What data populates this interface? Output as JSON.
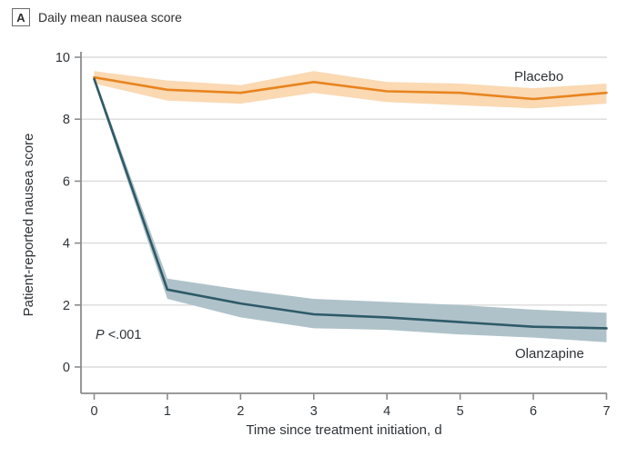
{
  "panel": {
    "label": "A",
    "title": "Daily mean nausea score"
  },
  "annotations": {
    "p_label": "P",
    "p_value": " <.001"
  },
  "colors": {
    "placebo_line": "#E8841F",
    "placebo_band": "#FAD9B3",
    "olanzapine_line": "#2E5A68",
    "olanzapine_band": "#AFC2CA",
    "grid": "#DBDBDB",
    "axis": "#8C8C8C",
    "text": "#2E3338"
  },
  "chart_data": {
    "type": "line",
    "x": [
      0,
      1,
      2,
      3,
      4,
      5,
      6,
      7
    ],
    "xlabel": "Time since treatment initiation, d",
    "ylabel": "Patient-reported nausea score",
    "xlim": [
      0,
      7
    ],
    "ylim": [
      0,
      10
    ],
    "xticks": [
      0,
      1,
      2,
      3,
      4,
      5,
      6,
      7
    ],
    "yticks": [
      0,
      2,
      4,
      6,
      8,
      10
    ],
    "grid": true,
    "legend_position": "inline-labels",
    "series": [
      {
        "name": "Placebo",
        "values": [
          9.35,
          8.95,
          8.85,
          9.2,
          8.9,
          8.85,
          8.65,
          8.85
        ],
        "band_upper": [
          9.55,
          9.25,
          9.1,
          9.55,
          9.2,
          9.15,
          9.0,
          9.15
        ],
        "band_lower": [
          9.15,
          8.6,
          8.5,
          8.85,
          8.55,
          8.45,
          8.35,
          8.5
        ]
      },
      {
        "name": "Olanzapine",
        "values": [
          9.3,
          2.5,
          2.05,
          1.7,
          1.6,
          1.45,
          1.3,
          1.25
        ],
        "band_upper": [
          9.4,
          2.85,
          2.5,
          2.2,
          2.1,
          2.0,
          1.85,
          1.75
        ],
        "band_lower": [
          9.2,
          2.2,
          1.6,
          1.25,
          1.2,
          1.05,
          0.95,
          0.8
        ]
      }
    ],
    "p_annotation": "P <.001"
  }
}
